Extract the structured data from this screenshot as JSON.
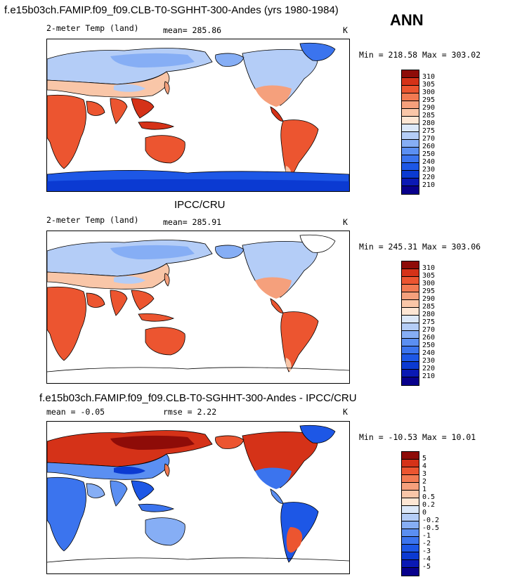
{
  "header": {
    "case_title": "f.e15b03ch.FAMIP.f09_f09.CLB-T0-SGHHT-300-Andes (yrs 1980-1984)",
    "season": "ANN"
  },
  "panels": [
    {
      "id": "model",
      "left_label": "2-meter Temp (land)",
      "mean_label": "mean= 285.86",
      "units": "K",
      "minmax": "Min = 218.58 Max = 303.02"
    },
    {
      "id": "obs",
      "title": "IPCC/CRU",
      "left_label": "2-meter Temp (land)",
      "mean_label": "mean= 285.91",
      "units": "K",
      "minmax": "Min = 245.31 Max = 303.06"
    },
    {
      "id": "diff",
      "title": "f.e15b03ch.FAMIP.f09_f09.CLB-T0-SGHHT-300-Andes - IPCC/CRU",
      "left_label": "mean =  -0.05",
      "mean_label": "rmse =   2.22",
      "units": "K",
      "minmax": "Min = -10.53 Max =  10.01"
    }
  ],
  "chart_data": [
    {
      "type": "heatmap",
      "title": "2-meter Temp (land)",
      "variable": "2-meter Temp (land)",
      "units": "K",
      "mean": 285.86,
      "min": 218.58,
      "max": 303.02,
      "contour_levels": [
        210,
        220,
        230,
        240,
        250,
        260,
        270,
        275,
        280,
        285,
        290,
        295,
        300,
        305,
        310
      ]
    },
    {
      "type": "heatmap",
      "title": "IPCC/CRU",
      "variable": "2-meter Temp (land)",
      "units": "K",
      "mean": 285.91,
      "min": 245.31,
      "max": 303.06,
      "contour_levels": [
        210,
        220,
        230,
        240,
        250,
        260,
        270,
        275,
        280,
        285,
        290,
        295,
        300,
        305,
        310
      ]
    },
    {
      "type": "heatmap",
      "title": "f.e15b03ch.FAMIP.f09_f09.CLB-T0-SGHHT-300-Andes - IPCC/CRU",
      "units": "K",
      "mean": -0.05,
      "rmse": 2.22,
      "min": -10.53,
      "max": 10.01,
      "contour_levels": [
        -5,
        -4,
        -3,
        -2,
        -1,
        -0.5,
        -0.2,
        0,
        0.2,
        0.5,
        1,
        2,
        3,
        4,
        5
      ]
    }
  ],
  "colors": {
    "abs_scale": [
      "#08008c",
      "#0a19b4",
      "#0b3ad2",
      "#1d57e6",
      "#3b74ee",
      "#5b8ff2",
      "#86aef5",
      "#b4cdf7",
      "#dce8f9",
      "#fde6d4",
      "#f9c6a8",
      "#f5a07c",
      "#f27a52",
      "#ec5530",
      "#d53218",
      "#8e0c08"
    ],
    "diff_scale": [
      "#08008c",
      "#0a19b4",
      "#0b3ad2",
      "#1d57e6",
      "#3b74ee",
      "#5b8ff2",
      "#86aef5",
      "#b4cdf7",
      "#dce8f9",
      "#fde6d4",
      "#f9c6a8",
      "#f5a07c",
      "#f27a52",
      "#ec5530",
      "#d53218",
      "#8e0c08"
    ]
  }
}
